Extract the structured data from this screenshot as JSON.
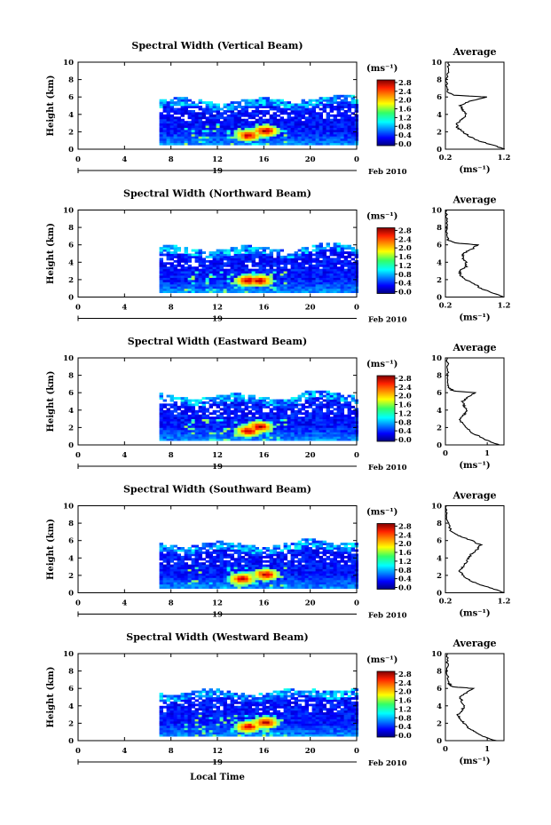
{
  "figure": {
    "xlabel": "Local Time",
    "date_label": "Feb 2010",
    "day_label": "19",
    "y_axis_label": "Height (km)",
    "unit_label": "(ms⁻¹)",
    "avg_title": "Average",
    "avg_xlabel": "(ms⁻¹)"
  },
  "chart_data": [
    {
      "type": "heatmap",
      "title": "Spectral Width (Vertical Beam)",
      "ylabel": "Height (km)",
      "x_ticks": [
        "0",
        "4",
        "8",
        "12",
        "16",
        "20",
        "0"
      ],
      "y_ticks": [
        "0",
        "2",
        "4",
        "6",
        "8",
        "10"
      ],
      "xlim": [
        0,
        24
      ],
      "ylim": [
        0,
        10
      ],
      "data_extent": {
        "start_hour": 7,
        "end_hour": 24,
        "top_km": 5.5
      },
      "hotspots": [
        {
          "hour": 14.5,
          "height_km": 1.5
        },
        {
          "hour": 16,
          "height_km": 2
        }
      ],
      "colorbar": {
        "ticks": [
          "0.0",
          "0.4",
          "0.8",
          "1.2",
          "1.6",
          "2.0",
          "2.4",
          "2.8"
        ],
        "range": [
          0,
          3.0
        ]
      },
      "average": {
        "title": "Average",
        "xlim": [
          0.2,
          1.2
        ],
        "x_ticks": [
          "0.2",
          "1.2"
        ],
        "ylim": [
          0,
          10
        ],
        "profile": [
          [
            1.2,
            0
          ],
          [
            1.0,
            0.5
          ],
          [
            0.75,
            1
          ],
          [
            0.6,
            1.5
          ],
          [
            0.5,
            2
          ],
          [
            0.4,
            2.5
          ],
          [
            0.4,
            3
          ],
          [
            0.5,
            3.5
          ],
          [
            0.55,
            4
          ],
          [
            0.5,
            4.5
          ],
          [
            0.45,
            5
          ],
          [
            0.6,
            5.5
          ],
          [
            0.9,
            6
          ],
          [
            0.35,
            6.2
          ],
          [
            0.25,
            6.5
          ],
          [
            0.22,
            7
          ],
          [
            0.22,
            8
          ],
          [
            0.25,
            9
          ],
          [
            0.25,
            10
          ]
        ]
      }
    },
    {
      "type": "heatmap",
      "title": "Spectral Width (Northward Beam)",
      "ylabel": "Height (km)",
      "x_ticks": [
        "0",
        "4",
        "8",
        "12",
        "16",
        "20",
        "0"
      ],
      "y_ticks": [
        "0",
        "2",
        "4",
        "6",
        "8",
        "10"
      ],
      "xlim": [
        0,
        24
      ],
      "ylim": [
        0,
        10
      ],
      "data_extent": {
        "start_hour": 7,
        "end_hour": 24,
        "top_km": 5.5
      },
      "hotspots": [
        {
          "hour": 14.5,
          "height_km": 1.8
        },
        {
          "hour": 15.5,
          "height_km": 1.8
        }
      ],
      "colorbar": {
        "ticks": [
          "0.0",
          "0.4",
          "0.8",
          "1.2",
          "1.6",
          "2.0",
          "2.4",
          "2.8"
        ],
        "range": [
          0,
          3.0
        ]
      },
      "average": {
        "title": "Average",
        "xlim": [
          0.2,
          1.2
        ],
        "x_ticks": [
          "0.2",
          "1.2"
        ],
        "ylim": [
          0,
          10
        ],
        "profile": [
          [
            1.2,
            0
          ],
          [
            1.0,
            0.5
          ],
          [
            0.8,
            1
          ],
          [
            0.7,
            1.5
          ],
          [
            0.55,
            2
          ],
          [
            0.45,
            2.5
          ],
          [
            0.45,
            3
          ],
          [
            0.55,
            3.5
          ],
          [
            0.55,
            4
          ],
          [
            0.5,
            4.5
          ],
          [
            0.5,
            5
          ],
          [
            0.65,
            5.5
          ],
          [
            0.75,
            6
          ],
          [
            0.4,
            6.2
          ],
          [
            0.25,
            6.5
          ],
          [
            0.22,
            7
          ],
          [
            0.22,
            8
          ],
          [
            0.22,
            9
          ],
          [
            0.22,
            10
          ]
        ]
      }
    },
    {
      "type": "heatmap",
      "title": "Spectral Width (Eastward Beam)",
      "ylabel": "Height (km)",
      "x_ticks": [
        "0",
        "4",
        "8",
        "12",
        "16",
        "20",
        "0"
      ],
      "y_ticks": [
        "0",
        "2",
        "4",
        "6",
        "8",
        "10"
      ],
      "xlim": [
        0,
        24
      ],
      "ylim": [
        0,
        10
      ],
      "data_extent": {
        "start_hour": 7,
        "end_hour": 24,
        "top_km": 5.5
      },
      "hotspots": [
        {
          "hour": 14.5,
          "height_km": 1.5
        },
        {
          "hour": 15.5,
          "height_km": 2
        }
      ],
      "colorbar": {
        "ticks": [
          "0.0",
          "0.4",
          "0.8",
          "1.2",
          "1.6",
          "2.0",
          "2.4",
          "2.8"
        ],
        "range": [
          0,
          3.0
        ]
      },
      "average": {
        "title": "Average",
        "xlim": [
          0,
          1.4
        ],
        "x_ticks": [
          "0",
          "1"
        ],
        "ylim": [
          0,
          10
        ],
        "profile": [
          [
            1.3,
            0
          ],
          [
            1.0,
            0.5
          ],
          [
            0.8,
            1
          ],
          [
            0.6,
            1.5
          ],
          [
            0.5,
            2
          ],
          [
            0.4,
            2.5
          ],
          [
            0.35,
            3
          ],
          [
            0.45,
            3.5
          ],
          [
            0.5,
            4
          ],
          [
            0.45,
            4.5
          ],
          [
            0.4,
            5
          ],
          [
            0.55,
            5.5
          ],
          [
            0.7,
            6
          ],
          [
            0.2,
            6.2
          ],
          [
            0.1,
            6.5
          ],
          [
            0.05,
            7
          ],
          [
            0.05,
            8
          ],
          [
            0.05,
            9
          ],
          [
            0.05,
            10
          ]
        ]
      }
    },
    {
      "type": "heatmap",
      "title": "Spectral Width (Southward Beam)",
      "ylabel": "Height (km)",
      "x_ticks": [
        "0",
        "4",
        "8",
        "12",
        "16",
        "20",
        "0"
      ],
      "y_ticks": [
        "0",
        "2",
        "4",
        "6",
        "8",
        "10"
      ],
      "xlim": [
        0,
        24
      ],
      "ylim": [
        0,
        10
      ],
      "data_extent": {
        "start_hour": 7,
        "end_hour": 24,
        "top_km": 5.5
      },
      "hotspots": [
        {
          "hour": 14,
          "height_km": 1.5
        },
        {
          "hour": 16,
          "height_km": 2
        }
      ],
      "colorbar": {
        "ticks": [
          "0.0",
          "0.4",
          "0.8",
          "1.2",
          "1.6",
          "2.0",
          "2.4",
          "2.8"
        ],
        "range": [
          0,
          3.0
        ]
      },
      "average": {
        "title": "Average",
        "xlim": [
          0.2,
          1.2
        ],
        "x_ticks": [
          "0.2",
          "1.2"
        ],
        "ylim": [
          0,
          10
        ],
        "profile": [
          [
            1.2,
            0
          ],
          [
            1.0,
            0.5
          ],
          [
            0.75,
            1
          ],
          [
            0.6,
            1.5
          ],
          [
            0.5,
            2
          ],
          [
            0.45,
            2.5
          ],
          [
            0.5,
            3
          ],
          [
            0.55,
            3.5
          ],
          [
            0.6,
            4
          ],
          [
            0.65,
            4.5
          ],
          [
            0.75,
            5
          ],
          [
            0.8,
            5.5
          ],
          [
            0.65,
            6
          ],
          [
            0.45,
            6.5
          ],
          [
            0.3,
            7
          ],
          [
            0.25,
            8
          ],
          [
            0.22,
            9
          ],
          [
            0.22,
            10
          ]
        ]
      }
    },
    {
      "type": "heatmap",
      "title": "Spectral Width (Westward Beam)",
      "ylabel": "Height (km)",
      "x_ticks": [
        "0",
        "4",
        "8",
        "12",
        "16",
        "20",
        "0"
      ],
      "y_ticks": [
        "0",
        "2",
        "4",
        "6",
        "8",
        "10"
      ],
      "xlim": [
        0,
        24
      ],
      "ylim": [
        0,
        10
      ],
      "data_extent": {
        "start_hour": 7,
        "end_hour": 24,
        "top_km": 5.5
      },
      "hotspots": [
        {
          "hour": 14.5,
          "height_km": 1.5
        },
        {
          "hour": 16,
          "height_km": 2
        }
      ],
      "colorbar": {
        "ticks": [
          "0.0",
          "0.4",
          "0.8",
          "1.2",
          "1.6",
          "2.0",
          "2.4",
          "2.8"
        ],
        "range": [
          0,
          3.0
        ]
      },
      "average": {
        "title": "Average",
        "xlim": [
          0,
          1.4
        ],
        "x_ticks": [
          "0",
          "1"
        ],
        "ylim": [
          0,
          10
        ],
        "profile": [
          [
            1.2,
            0
          ],
          [
            0.9,
            0.5
          ],
          [
            0.7,
            1
          ],
          [
            0.55,
            1.5
          ],
          [
            0.45,
            2
          ],
          [
            0.35,
            2.5
          ],
          [
            0.3,
            3
          ],
          [
            0.4,
            3.5
          ],
          [
            0.45,
            4
          ],
          [
            0.4,
            4.5
          ],
          [
            0.35,
            5
          ],
          [
            0.5,
            5.5
          ],
          [
            0.65,
            6
          ],
          [
            0.15,
            6.2
          ],
          [
            0.1,
            6.5
          ],
          [
            0.05,
            7
          ],
          [
            0.05,
            8
          ],
          [
            0.05,
            9
          ],
          [
            0.05,
            10
          ]
        ]
      }
    }
  ]
}
